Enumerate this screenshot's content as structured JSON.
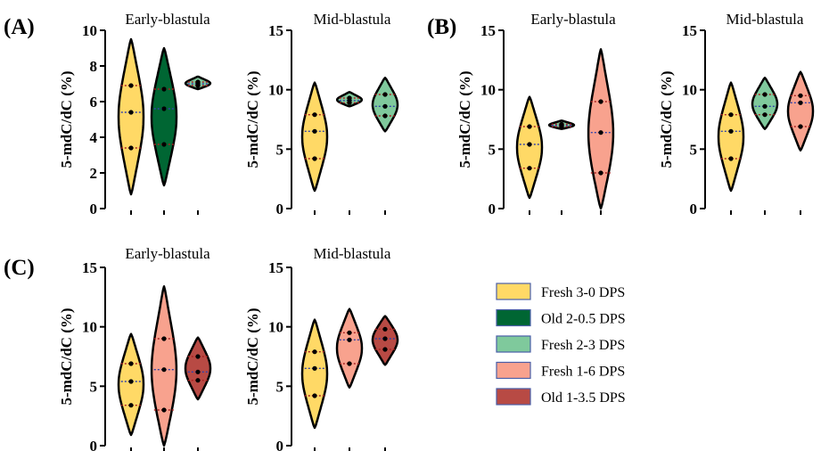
{
  "panel_letters": [
    "(A)",
    "(B)",
    "(C)"
  ],
  "legend": [
    {
      "label": "Fresh 3-0 DPS",
      "color": "#FFD966"
    },
    {
      "label": "Old 2-0.5 DPS",
      "color": "#006633"
    },
    {
      "label": "Fresh 2-3 DPS",
      "color": "#7FC99C"
    },
    {
      "label": "Fresh 1-6 DPS",
      "color": "#F8A28E"
    },
    {
      "label": "Old 1-3.5 DPS",
      "color": "#B84A44"
    }
  ],
  "chart_data": [
    {
      "type": "violin",
      "panel": "(A)",
      "title": "Early-blastula",
      "ylabel": "5-mdC/dC (%)",
      "ylim": [
        0,
        10
      ],
      "yticks": [
        0,
        2,
        4,
        6,
        8,
        10
      ],
      "series": [
        {
          "name": "Fresh 3-0 DPS",
          "color": "#FFD966",
          "min": 0.8,
          "max": 9.5,
          "q1": 3.4,
          "median": 5.4,
          "q3": 6.9
        },
        {
          "name": "Old 2-0.5 DPS",
          "color": "#006633",
          "min": 1.3,
          "max": 9.0,
          "q1": 3.6,
          "median": 5.6,
          "q3": 6.7
        },
        {
          "name": "Fresh 2-3 DPS",
          "color": "#7FC99C",
          "min": 6.7,
          "max": 7.4,
          "q1": 6.9,
          "median": 7.0,
          "q3": 7.1
        }
      ]
    },
    {
      "type": "violin",
      "panel": "(A)",
      "title": "Mid-blastula",
      "ylabel": "5-mdC/dC (%)",
      "ylim": [
        0,
        15
      ],
      "yticks": [
        0,
        5,
        10,
        15
      ],
      "series": [
        {
          "name": "Fresh 3-0 DPS",
          "color": "#FFD966",
          "min": 1.5,
          "max": 10.6,
          "q1": 4.2,
          "median": 6.5,
          "q3": 7.9
        },
        {
          "name": "Fresh 2-3 DPS",
          "color": "#7FC99C",
          "min": 8.6,
          "max": 9.8,
          "q1": 8.9,
          "median": 9.1,
          "q3": 9.3
        },
        {
          "name": "Fresh 2-3 DPS",
          "color": "#7FC99C",
          "min": 6.5,
          "max": 11.0,
          "q1": 7.8,
          "median": 8.6,
          "q3": 9.6
        }
      ]
    },
    {
      "type": "violin",
      "panel": "(B)",
      "title": "Early-blastula",
      "ylabel": "5-mdC/dC (%)",
      "ylim": [
        0,
        15
      ],
      "yticks": [
        0,
        5,
        10,
        15
      ],
      "series": [
        {
          "name": "Fresh 3-0 DPS",
          "color": "#FFD966",
          "min": 0.9,
          "max": 9.4,
          "q1": 3.4,
          "median": 5.4,
          "q3": 6.9
        },
        {
          "name": "Fresh 2-3 DPS",
          "color": "#7FC99C",
          "min": 6.7,
          "max": 7.4,
          "q1": 6.9,
          "median": 7.0,
          "q3": 7.1
        },
        {
          "name": "Fresh 1-6 DPS",
          "color": "#F8A28E",
          "min": 0.0,
          "max": 13.4,
          "q1": 3.0,
          "median": 6.4,
          "q3": 9.0
        }
      ]
    },
    {
      "type": "violin",
      "panel": "(B)",
      "title": "Mid-blastula",
      "ylabel": "5-mdC/dC (%)",
      "ylim": [
        0,
        15
      ],
      "yticks": [
        0,
        5,
        10,
        15
      ],
      "series": [
        {
          "name": "Fresh 3-0 DPS",
          "color": "#FFD966",
          "min": 1.5,
          "max": 10.6,
          "q1": 4.2,
          "median": 6.5,
          "q3": 7.9
        },
        {
          "name": "Fresh 2-3 DPS",
          "color": "#7FC99C",
          "min": 6.7,
          "max": 11.0,
          "q1": 7.9,
          "median": 8.6,
          "q3": 9.6
        },
        {
          "name": "Fresh 1-6 DPS",
          "color": "#F8A28E",
          "min": 4.9,
          "max": 11.5,
          "q1": 6.9,
          "median": 8.9,
          "q3": 9.5
        }
      ]
    },
    {
      "type": "violin",
      "panel": "(C)",
      "title": "Early-blastula",
      "ylabel": "5-mdC/dC (%)",
      "ylim": [
        0,
        15
      ],
      "yticks": [
        0,
        5,
        10,
        15
      ],
      "series": [
        {
          "name": "Fresh 3-0 DPS",
          "color": "#FFD966",
          "min": 0.9,
          "max": 9.4,
          "q1": 3.4,
          "median": 5.4,
          "q3": 6.9
        },
        {
          "name": "Fresh 1-6 DPS",
          "color": "#F8A28E",
          "min": 0.0,
          "max": 13.4,
          "q1": 3.0,
          "median": 6.4,
          "q3": 9.0
        },
        {
          "name": "Old 1-3.5 DPS",
          "color": "#B84A44",
          "min": 3.9,
          "max": 9.1,
          "q1": 5.5,
          "median": 6.2,
          "q3": 7.5
        }
      ]
    },
    {
      "type": "violin",
      "panel": "(C)",
      "title": "Mid-blastula",
      "ylabel": "5-mdC/dC (%)",
      "ylim": [
        0,
        15
      ],
      "yticks": [
        0,
        5,
        10,
        15
      ],
      "series": [
        {
          "name": "Fresh 3-0 DPS",
          "color": "#FFD966",
          "min": 1.5,
          "max": 10.6,
          "q1": 4.2,
          "median": 6.5,
          "q3": 7.9
        },
        {
          "name": "Fresh 1-6 DPS",
          "color": "#F8A28E",
          "min": 4.9,
          "max": 11.5,
          "q1": 6.9,
          "median": 8.9,
          "q3": 9.5
        },
        {
          "name": "Old 1-3.5 DPS",
          "color": "#B84A44",
          "min": 6.8,
          "max": 10.9,
          "q1": 8.1,
          "median": 9.0,
          "q3": 9.8
        }
      ]
    }
  ]
}
